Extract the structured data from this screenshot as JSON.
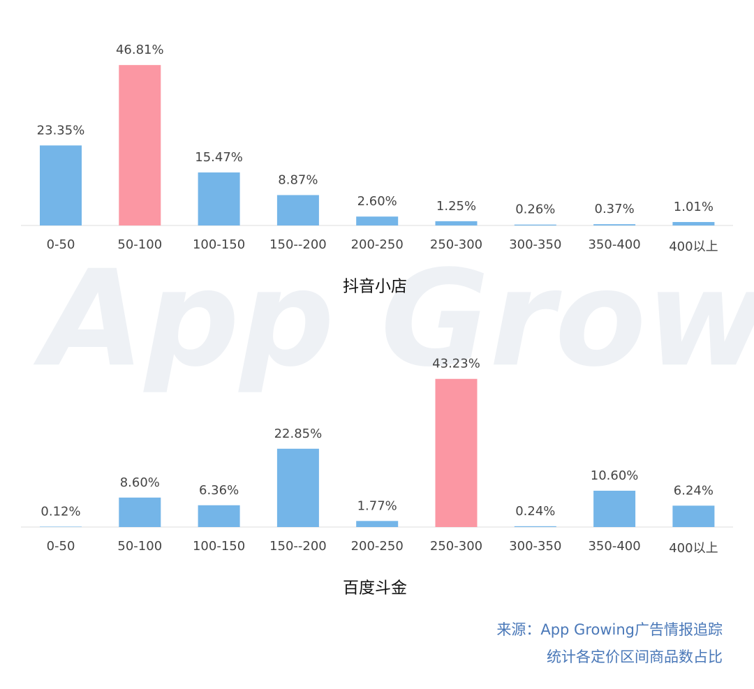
{
  "chart_data": [
    {
      "type": "bar",
      "title": "抖音小店",
      "categories": [
        "0-50",
        "50-100",
        "100-150",
        "150--200",
        "200-250",
        "250-300",
        "300-350",
        "350-400",
        "400以上"
      ],
      "values": [
        23.35,
        46.81,
        15.47,
        8.87,
        2.6,
        1.25,
        0.26,
        0.37,
        1.01
      ],
      "value_labels": [
        "23.35%",
        "46.81%",
        "15.47%",
        "8.87%",
        "2.60%",
        "1.25%",
        "0.26%",
        "0.37%",
        "1.01%"
      ],
      "colors": [
        "#74b5e8",
        "#fb97a3",
        "#74b5e8",
        "#74b5e8",
        "#74b5e8",
        "#74b5e8",
        "#74b5e8",
        "#74b5e8",
        "#74b5e8"
      ]
    },
    {
      "type": "bar",
      "title": "百度斗金",
      "categories": [
        "0-50",
        "50-100",
        "100-150",
        "150--200",
        "200-250",
        "250-300",
        "300-350",
        "350-400",
        "400以上"
      ],
      "values": [
        0.12,
        8.6,
        6.36,
        22.85,
        1.77,
        43.23,
        0.24,
        10.6,
        6.24
      ],
      "value_labels": [
        "0.12%",
        "8.60%",
        "6.36%",
        "22.85%",
        "1.77%",
        "43.23%",
        "0.24%",
        "10.60%",
        "6.24%"
      ],
      "colors": [
        "#74b5e8",
        "#74b5e8",
        "#74b5e8",
        "#74b5e8",
        "#74b5e8",
        "#fb97a3",
        "#74b5e8",
        "#74b5e8",
        "#74b5e8"
      ]
    }
  ],
  "watermark": "App Growing",
  "source": "来源：App Growing广告情报追踪",
  "note": "统计各定价区间商品数占比"
}
